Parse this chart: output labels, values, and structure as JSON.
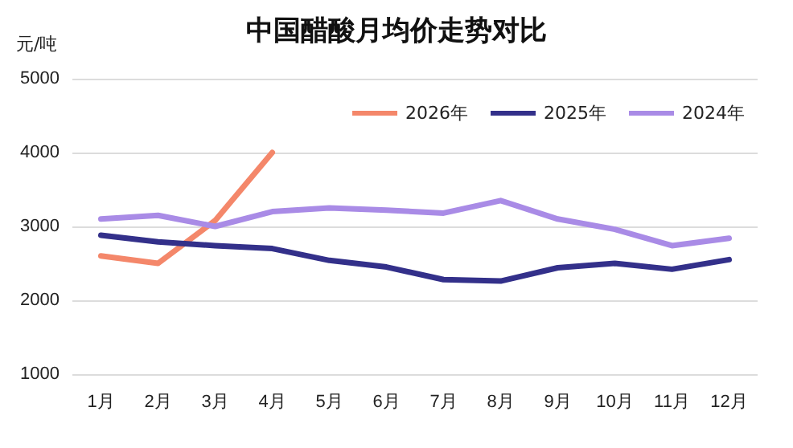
{
  "chart_data": {
    "type": "line",
    "title": "中国醋酸月均价走势对比",
    "ylabel": "元/吨",
    "categories": [
      "1月",
      "2月",
      "3月",
      "4月",
      "5月",
      "6月",
      "7月",
      "8月",
      "9月",
      "10月",
      "11月",
      "12月"
    ],
    "series": [
      {
        "name": "2026年",
        "color": "#f4876a",
        "values": [
          2600,
          2500,
          3080,
          4000,
          null,
          null,
          null,
          null,
          null,
          null,
          null,
          null
        ]
      },
      {
        "name": "2025年",
        "color": "#33308a",
        "values": [
          2880,
          2790,
          2740,
          2700,
          2540,
          2450,
          2280,
          2260,
          2440,
          2500,
          2420,
          2550
        ]
      },
      {
        "name": "2024年",
        "color": "#a98be6",
        "values": [
          3100,
          3150,
          3000,
          3200,
          3250,
          3220,
          3180,
          3350,
          3100,
          2960,
          2740,
          2840
        ]
      }
    ],
    "ylim": [
      1000,
      5000
    ],
    "yticks": [
      1000,
      2000,
      3000,
      4000,
      5000
    ],
    "grid": "y",
    "legend": "top right",
    "marker": "none",
    "line_style": "solid"
  }
}
